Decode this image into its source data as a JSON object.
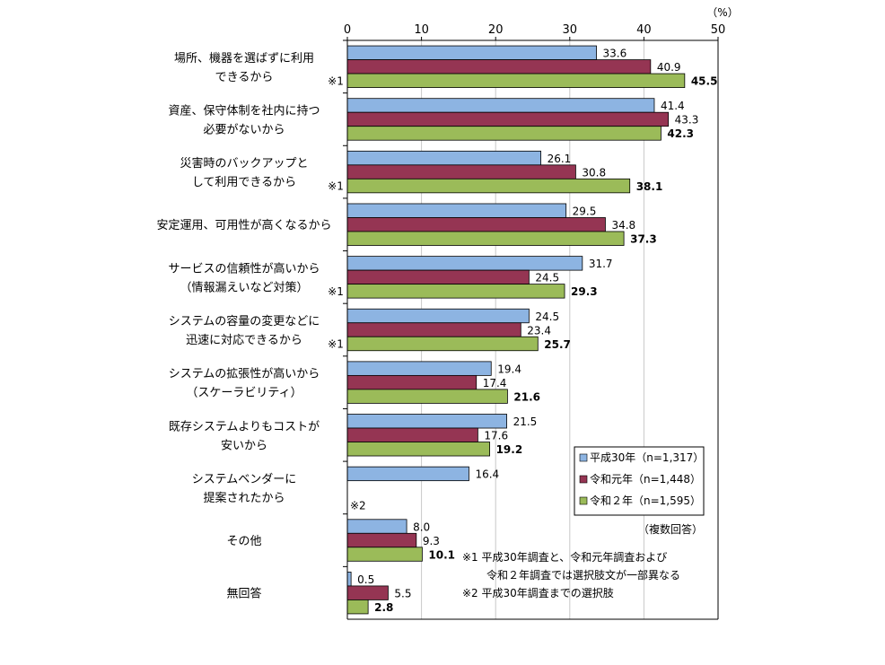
{
  "chart_data": {
    "type": "bar",
    "orientation": "horizontal",
    "unit_label": "（%）",
    "xlim": [
      0,
      50
    ],
    "xticks": [
      0,
      10,
      20,
      30,
      40,
      50
    ],
    "grid": true,
    "categories": [
      {
        "lines": [
          "場所、機器を選ばずに利用",
          "できるから"
        ],
        "note": "※1"
      },
      {
        "lines": [
          "資産、保守体制を社内に持つ",
          "必要がないから"
        ],
        "note": ""
      },
      {
        "lines": [
          "災害時のバックアップと",
          "して利用できるから"
        ],
        "note": "※1"
      },
      {
        "lines": [
          "安定運用、可用性が高くなるから"
        ],
        "note": ""
      },
      {
        "lines": [
          "サービスの信頼性が高いから",
          "（情報漏えいなど対策）"
        ],
        "note": "※1"
      },
      {
        "lines": [
          "システムの容量の変更などに",
          "迅速に対応できるから"
        ],
        "note": "※1"
      },
      {
        "lines": [
          "システムの拡張性が高いから",
          "（スケーラビリティ）"
        ],
        "note": ""
      },
      {
        "lines": [
          "既存システムよりもコストが",
          "安いから"
        ],
        "note": ""
      },
      {
        "lines": [
          "システムベンダーに",
          "提案されたから"
        ],
        "note": "※2"
      },
      {
        "lines": [
          "その他"
        ],
        "note": ""
      },
      {
        "lines": [
          "無回答"
        ],
        "note": ""
      }
    ],
    "series": [
      {
        "name": "平成30年（n=1,317）",
        "color": "#8db4e2",
        "values": [
          33.6,
          41.4,
          26.1,
          29.5,
          31.7,
          24.5,
          19.4,
          21.5,
          16.4,
          8.0,
          0.5
        ]
      },
      {
        "name": "令和元年（n=1,448）",
        "color": "#953553",
        "values": [
          40.9,
          43.3,
          30.8,
          34.8,
          24.5,
          23.4,
          17.4,
          17.6,
          null,
          9.3,
          5.5
        ]
      },
      {
        "name": "令和２年（n=1,595）",
        "color": "#9bbb59",
        "values": [
          45.5,
          42.3,
          38.1,
          37.3,
          29.3,
          25.7,
          21.6,
          19.2,
          null,
          10.1,
          2.8
        ]
      }
    ],
    "legend_position": "bottom-right",
    "response_note": "（複数回答）",
    "footnotes": [
      "※1 平成30年調査と、令和元年調査および",
      "令和２年調査では選択肢文が一部異なる",
      "※2 平成30年調査までの選択肢"
    ]
  }
}
